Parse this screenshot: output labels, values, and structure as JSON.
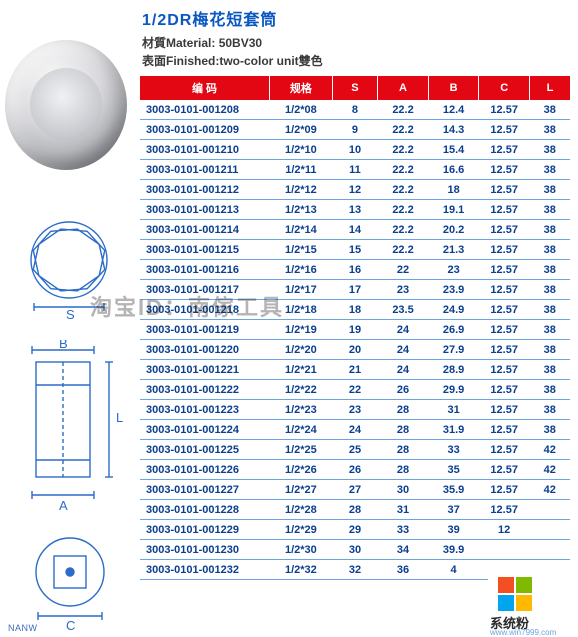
{
  "title": "1/2DR梅花短套筒",
  "meta": {
    "material_label": "材質Material:",
    "material_value": "50BV30",
    "finish_label": "表面Finished:",
    "finish_value": "two-color unit雙色"
  },
  "diagram": {
    "label_S": "S",
    "label_B": "B",
    "label_L": "L",
    "label_A": "A",
    "label_C": "C",
    "brand_on_photo": "NANW",
    "stroke": "#2a6cc8",
    "stroke_width": 1.4
  },
  "table": {
    "header_bg": "#e30613",
    "header_fg": "#ffffff",
    "row_fg": "#0a3e8f",
    "row_border": "#6aa4e2",
    "columns": [
      {
        "key": "code",
        "label": "编 码",
        "class": "col-code"
      },
      {
        "key": "spec",
        "label": "规格",
        "class": "col-spec"
      },
      {
        "key": "S",
        "label": "S",
        "class": "col-s"
      },
      {
        "key": "A",
        "label": "A",
        "class": "col-a"
      },
      {
        "key": "B",
        "label": "B",
        "class": "col-b"
      },
      {
        "key": "C",
        "label": "C",
        "class": "col-c"
      },
      {
        "key": "L",
        "label": "L",
        "class": "col-l"
      }
    ],
    "rows": [
      {
        "code": "3003-0101-001208",
        "spec": "1/2*08",
        "S": "8",
        "A": "22.2",
        "B": "12.4",
        "C": "12.57",
        "L": "38"
      },
      {
        "code": "3003-0101-001209",
        "spec": "1/2*09",
        "S": "9",
        "A": "22.2",
        "B": "14.3",
        "C": "12.57",
        "L": "38"
      },
      {
        "code": "3003-0101-001210",
        "spec": "1/2*10",
        "S": "10",
        "A": "22.2",
        "B": "15.4",
        "C": "12.57",
        "L": "38"
      },
      {
        "code": "3003-0101-001211",
        "spec": "1/2*11",
        "S": "11",
        "A": "22.2",
        "B": "16.6",
        "C": "12.57",
        "L": "38"
      },
      {
        "code": "3003-0101-001212",
        "spec": "1/2*12",
        "S": "12",
        "A": "22.2",
        "B": "18",
        "C": "12.57",
        "L": "38"
      },
      {
        "code": "3003-0101-001213",
        "spec": "1/2*13",
        "S": "13",
        "A": "22.2",
        "B": "19.1",
        "C": "12.57",
        "L": "38"
      },
      {
        "code": "3003-0101-001214",
        "spec": "1/2*14",
        "S": "14",
        "A": "22.2",
        "B": "20.2",
        "C": "12.57",
        "L": "38"
      },
      {
        "code": "3003-0101-001215",
        "spec": "1/2*15",
        "S": "15",
        "A": "22.2",
        "B": "21.3",
        "C": "12.57",
        "L": "38"
      },
      {
        "code": "3003-0101-001216",
        "spec": "1/2*16",
        "S": "16",
        "A": "22",
        "B": "23",
        "C": "12.57",
        "L": "38"
      },
      {
        "code": "3003-0101-001217",
        "spec": "1/2*17",
        "S": "17",
        "A": "23",
        "B": "23.9",
        "C": "12.57",
        "L": "38"
      },
      {
        "code": "3003-0101-001218",
        "spec": "1/2*18",
        "S": "18",
        "A": "23.5",
        "B": "24.9",
        "C": "12.57",
        "L": "38"
      },
      {
        "code": "3003-0101-001219",
        "spec": "1/2*19",
        "S": "19",
        "A": "24",
        "B": "26.9",
        "C": "12.57",
        "L": "38"
      },
      {
        "code": "3003-0101-001220",
        "spec": "1/2*20",
        "S": "20",
        "A": "24",
        "B": "27.9",
        "C": "12.57",
        "L": "38"
      },
      {
        "code": "3003-0101-001221",
        "spec": "1/2*21",
        "S": "21",
        "A": "24",
        "B": "28.9",
        "C": "12.57",
        "L": "38"
      },
      {
        "code": "3003-0101-001222",
        "spec": "1/2*22",
        "S": "22",
        "A": "26",
        "B": "29.9",
        "C": "12.57",
        "L": "38"
      },
      {
        "code": "3003-0101-001223",
        "spec": "1/2*23",
        "S": "23",
        "A": "28",
        "B": "31",
        "C": "12.57",
        "L": "38"
      },
      {
        "code": "3003-0101-001224",
        "spec": "1/2*24",
        "S": "24",
        "A": "28",
        "B": "31.9",
        "C": "12.57",
        "L": "38"
      },
      {
        "code": "3003-0101-001225",
        "spec": "1/2*25",
        "S": "25",
        "A": "28",
        "B": "33",
        "C": "12.57",
        "L": "42"
      },
      {
        "code": "3003-0101-001226",
        "spec": "1/2*26",
        "S": "26",
        "A": "28",
        "B": "35",
        "C": "12.57",
        "L": "42"
      },
      {
        "code": "3003-0101-001227",
        "spec": "1/2*27",
        "S": "27",
        "A": "30",
        "B": "35.9",
        "C": "12.57",
        "L": "42"
      },
      {
        "code": "3003-0101-001228",
        "spec": "1/2*28",
        "S": "28",
        "A": "31",
        "B": "37",
        "C": "12.57",
        "L": ""
      },
      {
        "code": "3003-0101-001229",
        "spec": "1/2*29",
        "S": "29",
        "A": "33",
        "B": "39",
        "C": "12",
        "L": ""
      },
      {
        "code": "3003-0101-001230",
        "spec": "1/2*30",
        "S": "30",
        "A": "34",
        "B": "39.9",
        "C": "",
        "L": ""
      },
      {
        "code": "3003-0101-001232",
        "spec": "1/2*32",
        "S": "32",
        "A": "36",
        "B": "4",
        "C": "",
        "L": ""
      }
    ]
  },
  "watermark": "淘宝ID：南傢工具",
  "corner": {
    "brand": "系统粉",
    "url": "www.win7999.com",
    "colors": [
      "#f25022",
      "#7fba00",
      "#00a4ef",
      "#ffb900"
    ]
  }
}
